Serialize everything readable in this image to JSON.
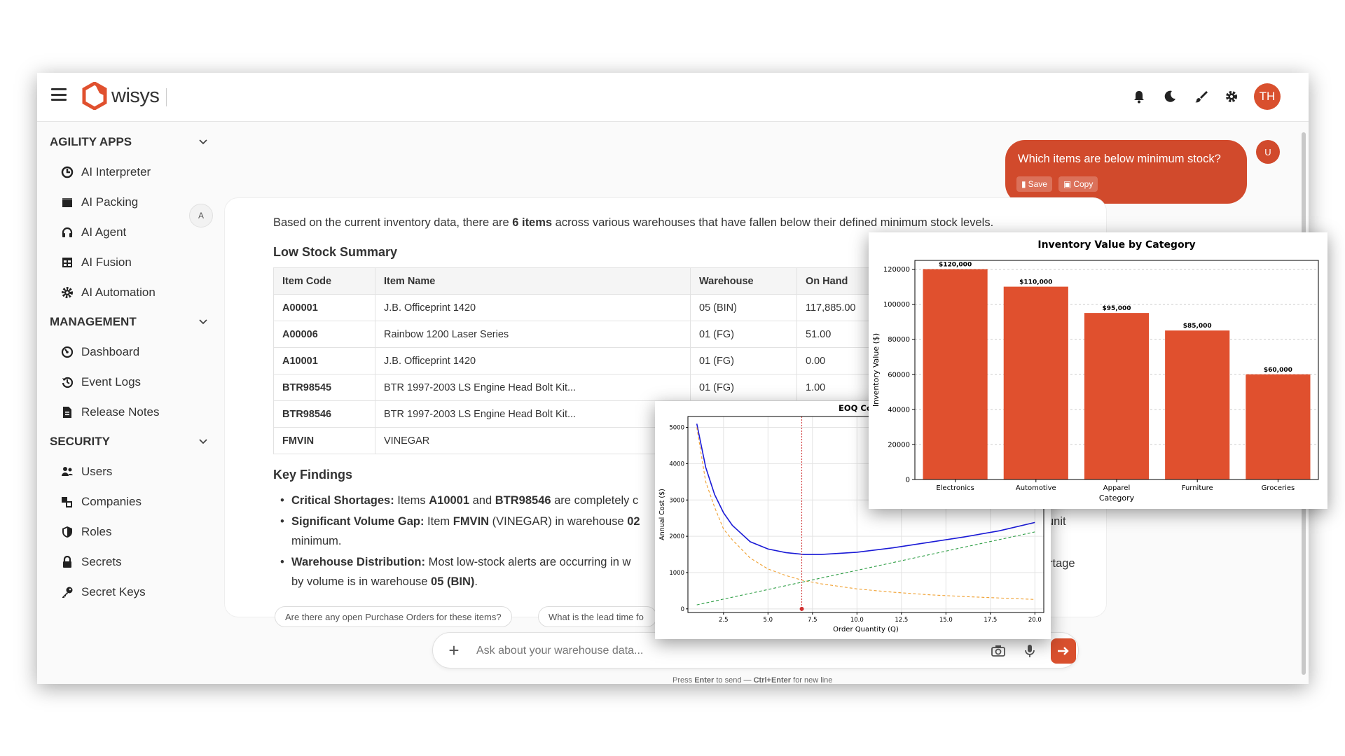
{
  "app": {
    "name": "wisys",
    "user_initials": "TH"
  },
  "topbar": {
    "icons": [
      "bell-icon",
      "moon-icon",
      "brush-icon",
      "gear-icon"
    ]
  },
  "sidebar": {
    "sections": [
      {
        "title": "AGILITY APPS",
        "items": [
          {
            "label": "AI Interpreter",
            "icon": "interpreter-icon"
          },
          {
            "label": "AI Packing",
            "icon": "packing-icon"
          },
          {
            "label": "AI Agent",
            "icon": "headset-icon"
          },
          {
            "label": "AI Fusion",
            "icon": "fusion-icon"
          },
          {
            "label": "AI Automation",
            "icon": "automation-gear-icon"
          }
        ]
      },
      {
        "title": "MANAGEMENT",
        "items": [
          {
            "label": "Dashboard",
            "icon": "dashboard-icon"
          },
          {
            "label": "Event Logs",
            "icon": "history-icon"
          },
          {
            "label": "Release Notes",
            "icon": "notes-icon"
          }
        ]
      },
      {
        "title": "SECURITY",
        "items": [
          {
            "label": "Users",
            "icon": "users-icon"
          },
          {
            "label": "Companies",
            "icon": "companies-icon"
          },
          {
            "label": "Roles",
            "icon": "shield-icon"
          },
          {
            "label": "Secrets",
            "icon": "lock-icon"
          },
          {
            "label": "Secret Keys",
            "icon": "key-icon"
          }
        ]
      }
    ]
  },
  "chat": {
    "user_message": "Which items are below minimum stock?",
    "user_avatar": "U",
    "save_label": "Save",
    "copy_label": "Copy",
    "ai_avatar": "A",
    "intro_before": "Based on the current inventory data, there are ",
    "intro_bold": "6 items",
    "intro_after": " across various warehouses that have fallen below their defined minimum stock levels.",
    "summary_title": "Low Stock Summary",
    "table": {
      "headers": [
        "Item Code",
        "Item Name",
        "Warehouse",
        "On Hand"
      ],
      "rows": [
        [
          "A00001",
          "J.B. Officeprint 1420",
          "05 (BIN)",
          "117,885.00"
        ],
        [
          "A00006",
          "Rainbow 1200 Laser Series",
          "01 (FG)",
          "51.00"
        ],
        [
          "A10001",
          "J.B. Officeprint 1420",
          "01 (FG)",
          "0.00"
        ],
        [
          "BTR98545",
          "BTR 1997-2003 LS Engine Head Bolt Kit...",
          "01 (FG)",
          "1.00"
        ],
        [
          "BTR98546",
          "BTR 1997-2003 LS Engine Head Bolt Kit...",
          "",
          ""
        ],
        [
          "FMVIN",
          "VINEGAR",
          "",
          ""
        ]
      ]
    },
    "findings_title": "Key Findings",
    "findings": [
      {
        "bold": "Critical Shortages:",
        "text": " Items ",
        "b2": "A10001",
        "t2": " and ",
        "b3": "BTR98546",
        "t3": " are completely c"
      },
      {
        "bold": "Significant Volume Gap:",
        "text": " Item ",
        "b2": "FMVIN",
        "t2": " (VINEGAR) in warehouse ",
        "b3": "02",
        "t3": ""
      },
      {
        "bold": "Warehouse Distribution:",
        "text": " Most low-stock alerts are occurring in w",
        "b2": "",
        "t2": "",
        "b3": "",
        "t3": ""
      }
    ],
    "finding2_cont": "minimum.",
    "finding3_cont_before": "by volume is in warehouse ",
    "finding3_cont_bold": "05 (BIN)",
    "finding3_cont_after": ".",
    "right_fragment_1": "unit",
    "right_fragment_2": "rtage",
    "suggestions": [
      "Are there any open Purchase Orders for these items?",
      "What is the lead time fo"
    ],
    "input_placeholder": "Ask about your warehouse data...",
    "hint_1": "Press ",
    "hint_enter": "Enter",
    "hint_2": " to send — ",
    "hint_ctrl": "Ctrl+Enter",
    "hint_3": " for new line"
  },
  "chart_data": [
    {
      "type": "bar",
      "title": "Inventory Value by Category",
      "xlabel": "Category",
      "ylabel": "Inventory Value ($)",
      "categories": [
        "Electronics",
        "Automotive",
        "Apparel",
        "Furniture",
        "Groceries"
      ],
      "values": [
        120000,
        110000,
        95000,
        85000,
        60000
      ],
      "value_labels": [
        "$120,000",
        "$110,000",
        "$95,000",
        "$85,000",
        "$60,000"
      ],
      "ylim": [
        0,
        125000
      ],
      "yticks": [
        0,
        20000,
        40000,
        60000,
        80000,
        100000,
        120000
      ],
      "grid": true,
      "color": "#e0502e"
    },
    {
      "type": "line",
      "title": "EOQ Cost Analys",
      "xlabel": "Order Quantity (Q)",
      "ylabel": "Annual Cost ($)",
      "xlim": [
        0.5,
        20.5
      ],
      "ylim": [
        -100,
        5300
      ],
      "xticks": [
        2.5,
        5.0,
        7.5,
        10.0,
        12.5,
        15.0,
        17.5,
        20.0
      ],
      "yticks": [
        0,
        1000,
        2000,
        3000,
        4000,
        5000
      ],
      "grid": true,
      "series": [
        {
          "style": "solid",
          "color": "#1a1ad6",
          "x": [
            1,
            1.5,
            2,
            2.5,
            3,
            4,
            5,
            6,
            7,
            8,
            10,
            12,
            14,
            16,
            18,
            20
          ],
          "y": [
            5100,
            3900,
            3150,
            2650,
            2300,
            1850,
            1650,
            1550,
            1500,
            1500,
            1560,
            1680,
            1830,
            1980,
            2150,
            2380
          ]
        },
        {
          "style": "dashed",
          "color": "#f0a030",
          "x": [
            1,
            1.5,
            2,
            2.5,
            3,
            4,
            5,
            6,
            7,
            8,
            10,
            12,
            14,
            16,
            18,
            20
          ],
          "y": [
            5000,
            3500,
            2800,
            2200,
            1900,
            1400,
            1100,
            920,
            780,
            690,
            550,
            460,
            390,
            340,
            300,
            260
          ]
        },
        {
          "style": "dashed",
          "color": "#2e9e45",
          "x": [
            1,
            20
          ],
          "y": [
            110,
            2120
          ]
        }
      ],
      "vline_x": 6.9,
      "point": {
        "x": 6.9,
        "y": 0
      }
    }
  ]
}
